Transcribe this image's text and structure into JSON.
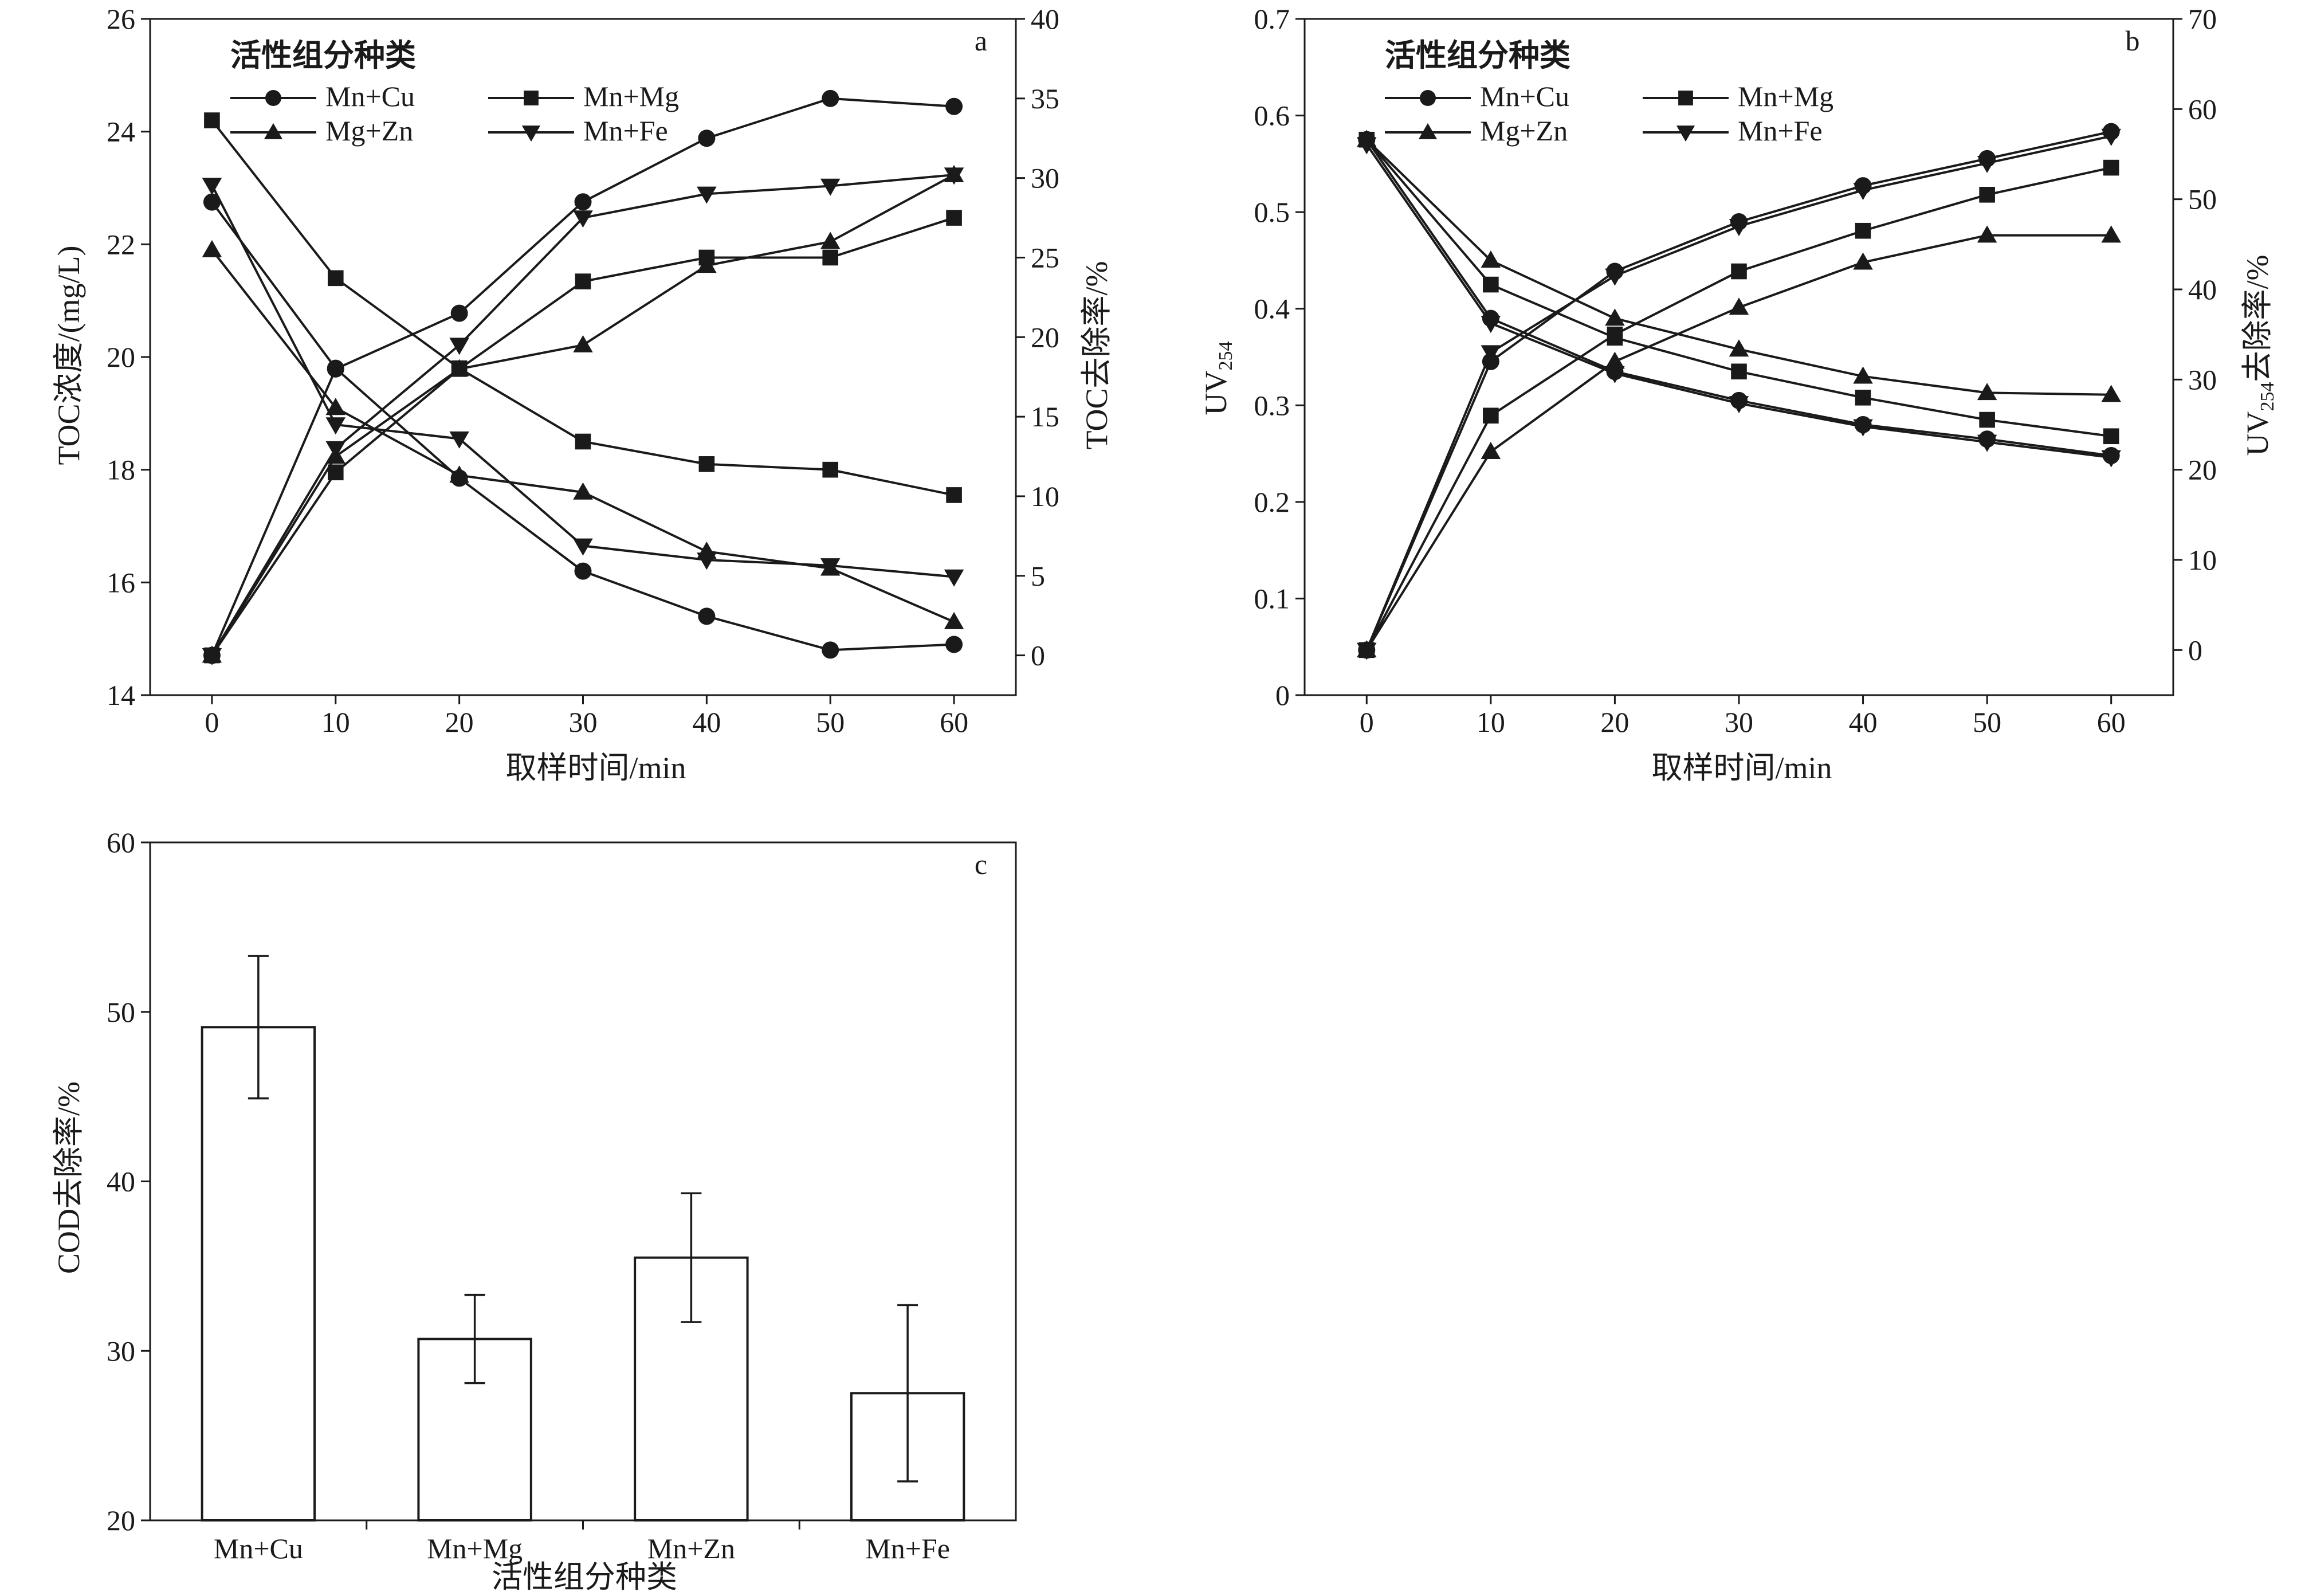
{
  "colors": {
    "ink": "#1a1a1a",
    "background": "#ffffff",
    "bar_fill": "#ffffff"
  },
  "chart_data": [
    {
      "panel": "a",
      "type": "line",
      "xlabel": "取样时间/min",
      "ylabel_left": "TOC浓度/(mg/L)",
      "ylabel_right": "TOC去除率/%",
      "x_ticks": [
        0,
        10,
        20,
        30,
        40,
        50,
        60
      ],
      "xlim": [
        -5,
        65
      ],
      "ylim_left": [
        14,
        26
      ],
      "yticks_left": [
        14,
        16,
        18,
        20,
        22,
        24,
        26
      ],
      "ylim_right": [
        -2.5,
        40
      ],
      "yticks_right": [
        0,
        5,
        10,
        15,
        20,
        25,
        30,
        35,
        40
      ],
      "legend_title": "活性组分种类",
      "legend": [
        {
          "name": "Mn+Cu",
          "marker": "circle"
        },
        {
          "name": "Mn+Mg",
          "marker": "square"
        },
        {
          "name": "Mg+Zn",
          "marker": "triangle-up"
        },
        {
          "name": "Mn+Fe",
          "marker": "triangle-down"
        }
      ],
      "x": [
        0,
        10,
        20,
        30,
        40,
        50,
        60
      ],
      "concentration_series": [
        {
          "name": "Mn+Cu",
          "marker": "circle",
          "values": [
            22.75,
            19.8,
            17.85,
            16.2,
            15.4,
            14.8,
            14.9
          ]
        },
        {
          "name": "Mn+Mg",
          "marker": "square",
          "values": [
            24.2,
            21.4,
            19.8,
            18.5,
            18.1,
            18.0,
            17.55
          ]
        },
        {
          "name": "Mg+Zn",
          "marker": "triangle-up",
          "values": [
            21.9,
            19.1,
            17.9,
            17.6,
            16.55,
            16.25,
            15.3
          ]
        },
        {
          "name": "Mn+Fe",
          "marker": "triangle-down",
          "values": [
            23.05,
            18.8,
            18.55,
            16.65,
            16.4,
            16.3,
            16.1
          ]
        }
      ],
      "removal_series": [
        {
          "name": "Mn+Cu",
          "marker": "circle",
          "values": [
            0,
            18,
            21.5,
            28.5,
            32.5,
            35,
            34.5
          ]
        },
        {
          "name": "Mn+Mg",
          "marker": "square",
          "values": [
            0,
            11.5,
            18,
            23.5,
            25,
            25,
            27.5
          ]
        },
        {
          "name": "Mg+Zn",
          "marker": "triangle-up",
          "values": [
            0,
            12.5,
            18,
            19.5,
            24.5,
            26,
            30.2
          ]
        },
        {
          "name": "Mn+Fe",
          "marker": "triangle-down",
          "values": [
            0,
            13,
            19.5,
            27.5,
            29,
            29.5,
            30.2
          ]
        }
      ]
    },
    {
      "panel": "b",
      "type": "line",
      "xlabel": "取样时间/min",
      "ylabel_left": "UV",
      "ylabel_left_sub": "254",
      "ylabel_right": "UV",
      "ylabel_right_sub": "254",
      "ylabel_right_tail": "去除率/%",
      "x_ticks": [
        0,
        10,
        20,
        30,
        40,
        50,
        60
      ],
      "xlim": [
        -5,
        65
      ],
      "ylim_left": [
        0,
        0.7
      ],
      "yticks_left": [
        0,
        0.1,
        0.2,
        0.3,
        0.4,
        0.5,
        0.6,
        0.7
      ],
      "ylim_right": [
        -5,
        70
      ],
      "yticks_right": [
        0,
        10,
        20,
        30,
        40,
        50,
        60,
        70
      ],
      "legend_title": "活性组分种类",
      "legend": [
        {
          "name": "Mn+Cu",
          "marker": "circle"
        },
        {
          "name": "Mn+Mg",
          "marker": "square"
        },
        {
          "name": "Mg+Zn",
          "marker": "triangle-up"
        },
        {
          "name": "Mn+Fe",
          "marker": "triangle-down"
        }
      ],
      "x": [
        0,
        10,
        20,
        30,
        40,
        50,
        60
      ],
      "uv_series": [
        {
          "name": "Mn+Cu",
          "marker": "circle",
          "values": [
            0.575,
            0.39,
            0.335,
            0.305,
            0.28,
            0.265,
            0.248
          ]
        },
        {
          "name": "Mn+Mg",
          "marker": "square",
          "values": [
            0.575,
            0.425,
            0.37,
            0.335,
            0.308,
            0.285,
            0.268
          ]
        },
        {
          "name": "Mg+Zn",
          "marker": "triangle-up",
          "values": [
            0.575,
            0.45,
            0.39,
            0.358,
            0.33,
            0.313,
            0.311
          ]
        },
        {
          "name": "Mn+Fe",
          "marker": "triangle-down",
          "values": [
            0.57,
            0.385,
            0.333,
            0.302,
            0.278,
            0.262,
            0.246
          ]
        }
      ],
      "removal_series": [
        {
          "name": "Mn+Cu",
          "marker": "circle",
          "values": [
            0,
            32,
            42,
            47.5,
            51.5,
            54.5,
            57.5
          ]
        },
        {
          "name": "Mn+Mg",
          "marker": "square",
          "values": [
            0,
            26,
            35,
            42,
            46.5,
            50.5,
            53.5
          ]
        },
        {
          "name": "Mg+Zn",
          "marker": "triangle-up",
          "values": [
            0,
            22,
            32,
            38,
            43,
            46,
            46
          ]
        },
        {
          "name": "Mn+Fe",
          "marker": "triangle-down",
          "values": [
            0,
            33,
            41.5,
            47,
            51,
            54,
            57
          ]
        }
      ]
    },
    {
      "panel": "c",
      "type": "bar",
      "xlabel": "活性组分种类",
      "ylabel": "COD去除率/%",
      "ylim": [
        20,
        60
      ],
      "yticks": [
        20,
        30,
        40,
        50,
        60
      ],
      "categories": [
        "Mn+Cu",
        "Mn+Mg",
        "Mn+Zn",
        "Mn+Fe"
      ],
      "values": [
        49.1,
        30.7,
        35.5,
        27.5
      ],
      "errors": [
        4.2,
        2.6,
        3.8,
        5.2
      ]
    }
  ]
}
